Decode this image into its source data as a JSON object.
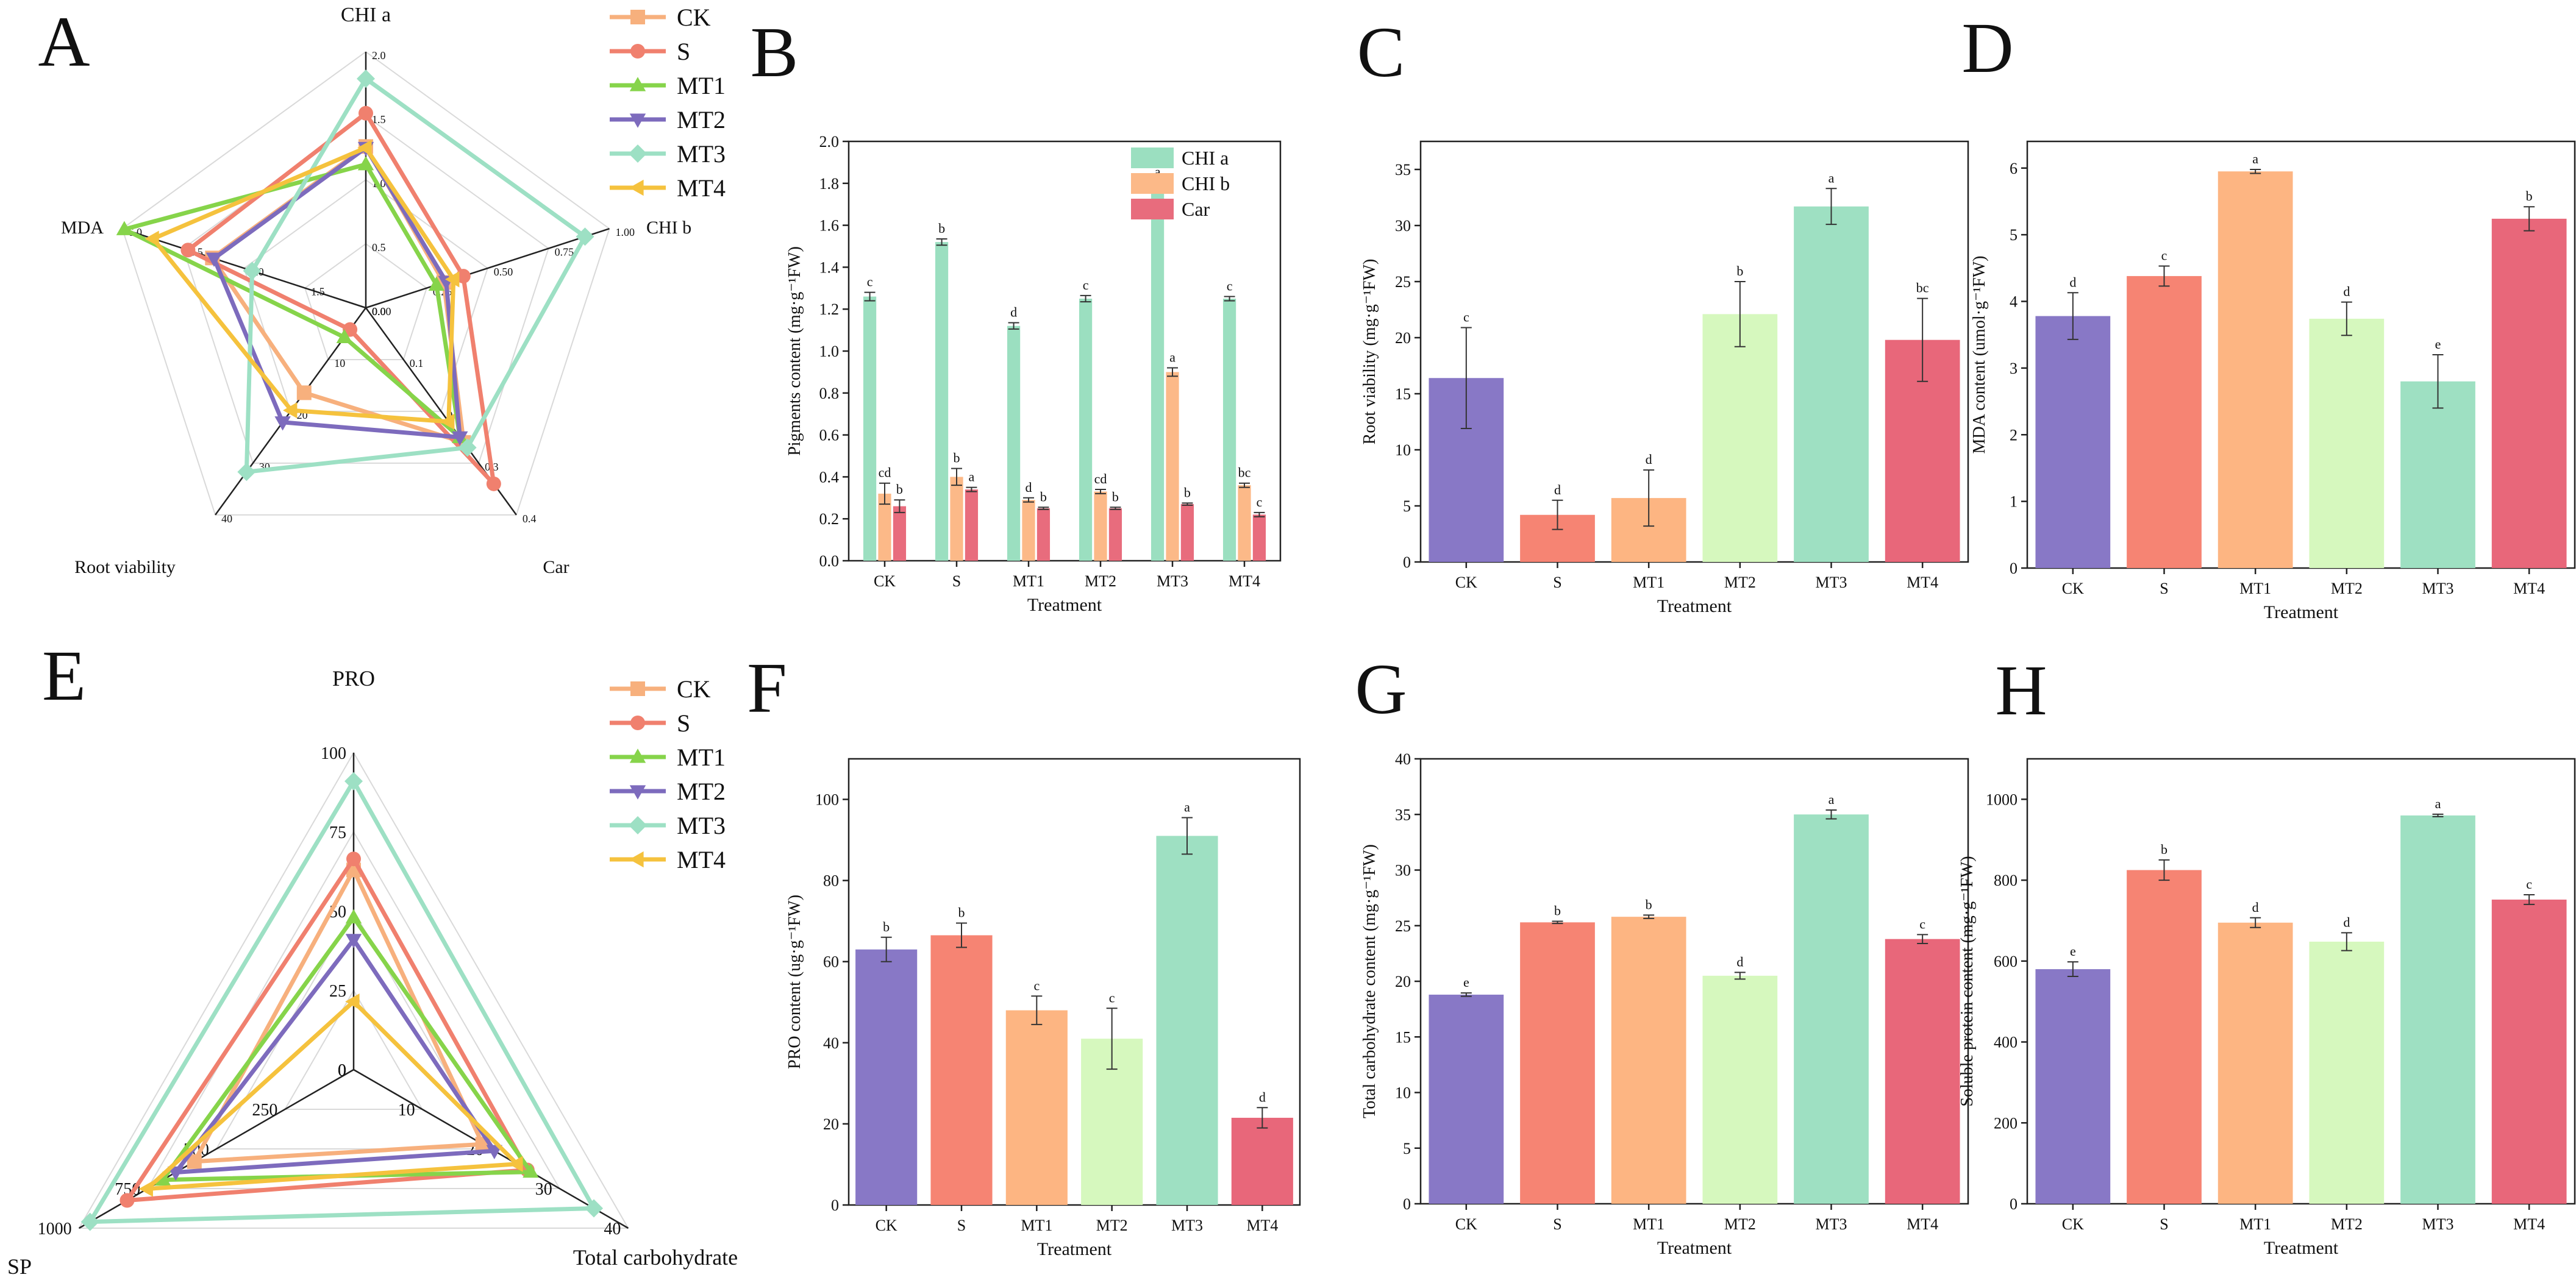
{
  "treatments": [
    "CK",
    "S",
    "MT1",
    "MT2",
    "MT3",
    "MT4"
  ],
  "colors": {
    "CK": "#f7b07d",
    "S": "#f0806e",
    "MT1": "#86d44a",
    "MT2": "#7d6bbd",
    "MT3": "#9de0c4",
    "MT4": "#f5c23d",
    "chla": "#9bdfc0",
    "chlb": "#fcb988",
    "car": "#e86c7d",
    "bar_ck": "#8878c6",
    "bar_s": "#f68473",
    "bar_mt1": "#fdb582",
    "bar_mt2": "#d6f8be",
    "bar_mt3": "#9ee0c2",
    "bar_mt4": "#e8677a"
  },
  "chart_data": [
    {
      "panel": "A",
      "type": "radar",
      "axes": [
        "CHI a",
        "CHI b",
        "Car",
        "Root viability",
        "MDA"
      ],
      "axis_max": [
        2.0,
        1.0,
        0.4,
        40,
        6.0
      ],
      "ticks": [
        [
          "0.0",
          "0.5",
          "1.0",
          "1.5",
          "2.0"
        ],
        [
          "0.00",
          "0.25",
          "0.50",
          "0.75",
          "1.00"
        ],
        [
          "0.0",
          "0.1",
          "0.2",
          "0.3",
          "0.4"
        ],
        [
          "0",
          "10",
          "20",
          "30",
          "40"
        ],
        [
          "0.0",
          "1.5",
          "3.0",
          "4.5",
          "6.0"
        ]
      ],
      "series": [
        {
          "name": "CK",
          "values": [
            1.26,
            0.32,
            0.26,
            16.4,
            3.78
          ]
        },
        {
          "name": "S",
          "values": [
            1.52,
            0.4,
            0.34,
            4.2,
            4.38
          ]
        },
        {
          "name": "MT1",
          "values": [
            1.12,
            0.29,
            0.25,
            5.7,
            5.95
          ]
        },
        {
          "name": "MT2",
          "values": [
            1.25,
            0.33,
            0.25,
            22.1,
            3.74
          ]
        },
        {
          "name": "MT3",
          "values": [
            1.79,
            0.9,
            0.27,
            31.7,
            2.8
          ]
        },
        {
          "name": "MT4",
          "values": [
            1.25,
            0.36,
            0.22,
            19.8,
            5.24
          ]
        }
      ]
    },
    {
      "panel": "B",
      "type": "bar",
      "xlabel": "Treatment",
      "ylabel": "Pigments content (mg·g⁻¹FW)",
      "ylim": [
        0,
        2.0
      ],
      "yticks": [
        "0.0",
        "0.2",
        "0.4",
        "0.6",
        "0.8",
        "1.0",
        "1.2",
        "1.4",
        "1.6",
        "1.8",
        "2.0"
      ],
      "categories": [
        "CK",
        "S",
        "MT1",
        "MT2",
        "MT3",
        "MT4"
      ],
      "legend": [
        "CHI a",
        "CHI b",
        "Car"
      ],
      "series": [
        {
          "name": "CHI a",
          "values": [
            1.26,
            1.52,
            1.12,
            1.25,
            1.79,
            1.25
          ],
          "errors": [
            0.02,
            0.015,
            0.015,
            0.015,
            0.015,
            0.01
          ],
          "letters": [
            "c",
            "b",
            "d",
            "c",
            "a",
            "c"
          ]
        },
        {
          "name": "CHI b",
          "values": [
            0.32,
            0.4,
            0.29,
            0.33,
            0.9,
            0.36
          ],
          "errors": [
            0.05,
            0.04,
            0.01,
            0.01,
            0.02,
            0.01
          ],
          "letters": [
            "cd",
            "b",
            "d",
            "cd",
            "a",
            "bc"
          ]
        },
        {
          "name": "Car",
          "values": [
            0.26,
            0.34,
            0.25,
            0.25,
            0.27,
            0.22
          ],
          "errors": [
            0.03,
            0.01,
            0.005,
            0.005,
            0.005,
            0.01
          ],
          "letters": [
            "b",
            "a",
            "b",
            "b",
            "b",
            "c"
          ]
        }
      ]
    },
    {
      "panel": "C",
      "type": "bar",
      "xlabel": "Treatment",
      "ylabel": "Root viability (mg·g⁻¹FW)",
      "ylim": [
        0,
        37.5
      ],
      "yticks": [
        "0",
        "5",
        "10",
        "15",
        "20",
        "25",
        "30",
        "35"
      ],
      "categories": [
        "CK",
        "S",
        "MT1",
        "MT2",
        "MT3",
        "MT4"
      ],
      "values": [
        16.4,
        4.2,
        5.7,
        22.1,
        31.7,
        19.8
      ],
      "errors": [
        4.5,
        1.3,
        2.5,
        2.9,
        1.6,
        3.7
      ],
      "letters": [
        "c",
        "d",
        "d",
        "b",
        "a",
        "bc"
      ]
    },
    {
      "panel": "D",
      "type": "bar",
      "xlabel": "Treatment",
      "ylabel": "MDA content (umol·g⁻¹FW)",
      "ylim": [
        0,
        6.4
      ],
      "yticks": [
        "0",
        "1",
        "2",
        "3",
        "4",
        "5",
        "6"
      ],
      "categories": [
        "CK",
        "S",
        "MT1",
        "MT2",
        "MT3",
        "MT4"
      ],
      "values": [
        3.78,
        4.38,
        5.95,
        3.74,
        2.8,
        5.24
      ],
      "errors": [
        0.35,
        0.15,
        0.03,
        0.25,
        0.4,
        0.18
      ],
      "letters": [
        "d",
        "c",
        "a",
        "d",
        "e",
        "b"
      ]
    },
    {
      "panel": "E",
      "type": "radar",
      "axes": [
        "PRO",
        "Total carbohydrate",
        "SP"
      ],
      "axis_max": [
        100,
        40,
        1000
      ],
      "ticks": [
        [
          "0",
          "25",
          "50",
          "75",
          "100"
        ],
        [
          "0",
          "10",
          "20",
          "30",
          "40"
        ],
        [
          "0",
          "250",
          "500",
          "750",
          "1000"
        ]
      ],
      "series": [
        {
          "name": "CK",
          "values": [
            63,
            18.8,
            580
          ]
        },
        {
          "name": "S",
          "values": [
            66.5,
            25.3,
            825
          ]
        },
        {
          "name": "MT1",
          "values": [
            48,
            25.8,
            695
          ]
        },
        {
          "name": "MT2",
          "values": [
            41,
            20.5,
            648
          ]
        },
        {
          "name": "MT3",
          "values": [
            91,
            35.0,
            960
          ]
        },
        {
          "name": "MT4",
          "values": [
            21.5,
            23.8,
            752
          ]
        }
      ]
    },
    {
      "panel": "F",
      "type": "bar",
      "xlabel": "Treatment",
      "ylabel": "PRO content (ug·g⁻¹FW)",
      "ylim": [
        0,
        110
      ],
      "yticks": [
        "0",
        "20",
        "40",
        "60",
        "80",
        "100"
      ],
      "categories": [
        "CK",
        "S",
        "MT1",
        "MT2",
        "MT3",
        "MT4"
      ],
      "values": [
        63,
        66.5,
        48,
        41,
        91,
        21.5
      ],
      "errors": [
        3,
        3,
        3.5,
        7.5,
        4.5,
        2.5
      ],
      "letters": [
        "b",
        "b",
        "c",
        "c",
        "a",
        "d"
      ]
    },
    {
      "panel": "G",
      "type": "bar",
      "xlabel": "Treatment",
      "ylabel": "Total carbohydrate content (mg·g⁻¹FW)",
      "ylim": [
        0,
        40
      ],
      "yticks": [
        "0",
        "5",
        "10",
        "15",
        "20",
        "25",
        "30",
        "35",
        "40"
      ],
      "categories": [
        "CK",
        "S",
        "MT1",
        "MT2",
        "MT3",
        "MT4"
      ],
      "values": [
        18.8,
        25.3,
        25.8,
        20.5,
        35.0,
        23.8
      ],
      "errors": [
        0.15,
        0.1,
        0.15,
        0.3,
        0.4,
        0.4
      ],
      "letters": [
        "e",
        "b",
        "b",
        "d",
        "a",
        "c"
      ]
    },
    {
      "panel": "H",
      "type": "bar",
      "xlabel": "Treatment",
      "ylabel": "Soluble protein content (mg·g⁻¹FW)",
      "ylim": [
        0,
        1100
      ],
      "yticks": [
        "0",
        "200",
        "400",
        "600",
        "800",
        "1000"
      ],
      "categories": [
        "CK",
        "S",
        "MT1",
        "MT2",
        "MT3",
        "MT4"
      ],
      "values": [
        580,
        825,
        695,
        648,
        960,
        752
      ],
      "errors": [
        18,
        25,
        12,
        22,
        3,
        12
      ],
      "letters": [
        "e",
        "b",
        "d",
        "d",
        "a",
        "c"
      ]
    }
  ]
}
